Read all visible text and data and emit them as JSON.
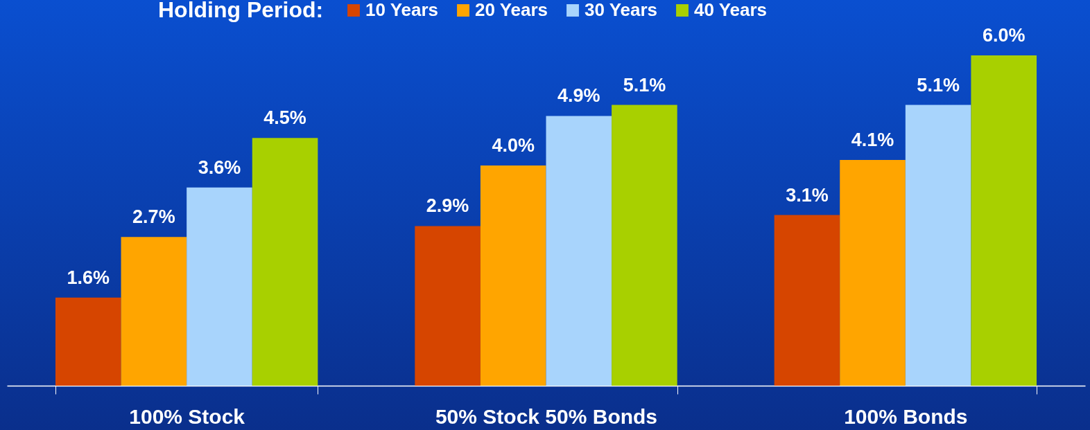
{
  "chart_data": {
    "type": "bar",
    "legend_title": "Holding Period:",
    "legend": "top",
    "categories": [
      "100% Stock",
      "50% Stock 50% Bonds",
      "100% Bonds"
    ],
    "series": [
      {
        "name": "10 Years",
        "color": "#d64500",
        "values": [
          1.6,
          2.9,
          3.1
        ],
        "value_labels": [
          "1.6%",
          "2.9%",
          "3.1%"
        ]
      },
      {
        "name": "20 Years",
        "color": "#ffa500",
        "values": [
          2.7,
          4.0,
          4.1
        ],
        "value_labels": [
          "2.7%",
          "4.0%",
          "4.1%"
        ]
      },
      {
        "name": "30 Years",
        "color": "#a8d4fc",
        "values": [
          3.6,
          4.9,
          5.1
        ],
        "value_labels": [
          "3.6%",
          "4.9%",
          "5.1%"
        ]
      },
      {
        "name": "40 Years",
        "color": "#a8d000",
        "values": [
          4.5,
          5.1,
          6.0
        ],
        "value_labels": [
          "4.5%",
          "5.1%",
          "6.0%"
        ]
      }
    ]
  }
}
